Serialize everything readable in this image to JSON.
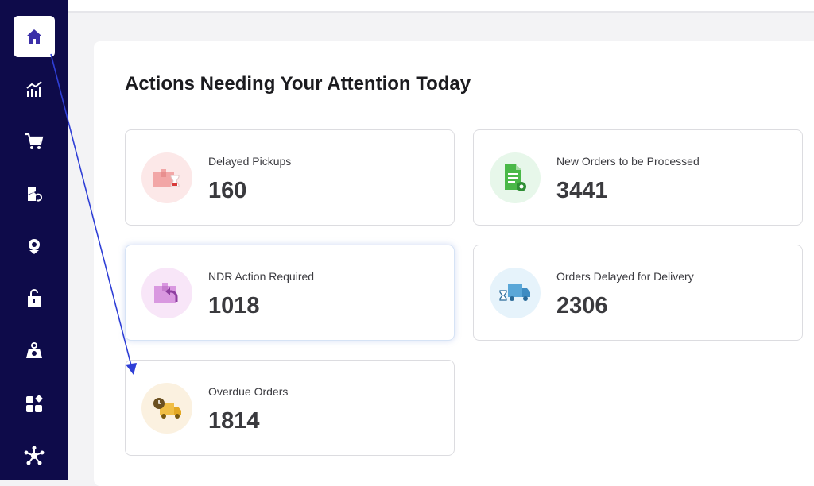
{
  "sidebar": {
    "items": [
      {
        "icon": "home-icon",
        "active": true
      },
      {
        "icon": "analytics-icon",
        "active": false
      },
      {
        "icon": "cart-icon",
        "active": false
      },
      {
        "icon": "returns-icon",
        "active": false
      },
      {
        "icon": "location-pin-icon",
        "active": false
      },
      {
        "icon": "unlock-box-icon",
        "active": false
      },
      {
        "icon": "weight-icon",
        "active": false
      },
      {
        "icon": "apps-icon",
        "active": false
      },
      {
        "icon": "integrations-icon",
        "active": false
      }
    ]
  },
  "main": {
    "title": "Actions Needing Your Attention Today",
    "cards": [
      {
        "label": "Delayed Pickups",
        "value": "160",
        "icon": "delayed-pickup-icon"
      },
      {
        "label": "New Orders to be Processed",
        "value": "3441",
        "icon": "new-order-document-icon"
      },
      {
        "label": "NDR Action Required",
        "value": "1018",
        "icon": "ndr-return-box-icon"
      },
      {
        "label": "Orders Delayed for Delivery",
        "value": "2306",
        "icon": "delivery-truck-hourglass-icon"
      },
      {
        "label": "Overdue Orders",
        "value": "1814",
        "icon": "overdue-truck-clock-icon"
      }
    ]
  },
  "colors": {
    "sidebar_bg": "#0e0b4a",
    "nav_icon": "#ffffff",
    "active_icon": "#3b2fa8",
    "annotation_arrow": "#2f3fd6"
  }
}
